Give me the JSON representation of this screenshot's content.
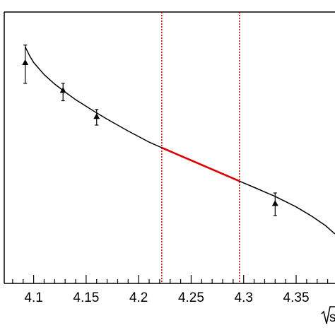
{
  "chart_data": {
    "type": "line",
    "title": "",
    "xlabel": "√s",
    "ylabel": "",
    "xlim": [
      4.072,
      4.387
    ],
    "x_ticks": [
      4.1,
      4.15,
      4.2,
      4.25,
      4.3,
      4.35
    ],
    "x_tick_labels": [
      "4.1",
      "4.15",
      "4.2",
      "4.25",
      "4.3",
      "4.35"
    ],
    "grid": false,
    "series": [
      {
        "type": "scatter-errorbar",
        "marker": "triangle",
        "points": [
          {
            "x": 4.092,
            "y": 0.835,
            "yerr_low": 0.06,
            "yerr_high": 0.05
          },
          {
            "x": 4.128,
            "y": 0.755,
            "yerr_low": 0.03,
            "yerr_high": 0.02
          },
          {
            "x": 4.16,
            "y": 0.68,
            "yerr_low": 0.025,
            "yerr_high": 0.02
          },
          {
            "x": 4.33,
            "y": 0.43,
            "yerr_low": 0.035,
            "yerr_high": 0.03
          }
        ]
      },
      {
        "type": "line",
        "color": "#000000",
        "x": [
          4.092,
          4.096,
          4.1,
          4.11,
          4.12,
          4.13,
          4.14,
          4.15,
          4.16,
          4.17,
          4.18,
          4.19,
          4.2,
          4.21,
          4.222,
          4.24,
          4.26,
          4.28,
          4.296,
          4.31,
          4.33,
          4.35,
          4.365,
          4.378,
          4.387
        ],
        "y": [
          0.88,
          0.855,
          0.835,
          0.8,
          0.773,
          0.75,
          0.728,
          0.709,
          0.69,
          0.672,
          0.655,
          0.638,
          0.622,
          0.606,
          0.59,
          0.566,
          0.54,
          0.514,
          0.494,
          0.476,
          0.45,
          0.42,
          0.393,
          0.366,
          0.342
        ]
      },
      {
        "type": "line",
        "color": "#dd0000",
        "x": [
          4.222,
          4.296
        ],
        "y": [
          0.59,
          0.494
        ]
      }
    ],
    "vertical_lines": [
      {
        "x": 4.222,
        "style": "dotted",
        "color": "#cc0000"
      },
      {
        "x": 4.296,
        "style": "dotted",
        "color": "#cc0000"
      }
    ],
    "ylim": [
      0.2,
      0.98
    ]
  }
}
